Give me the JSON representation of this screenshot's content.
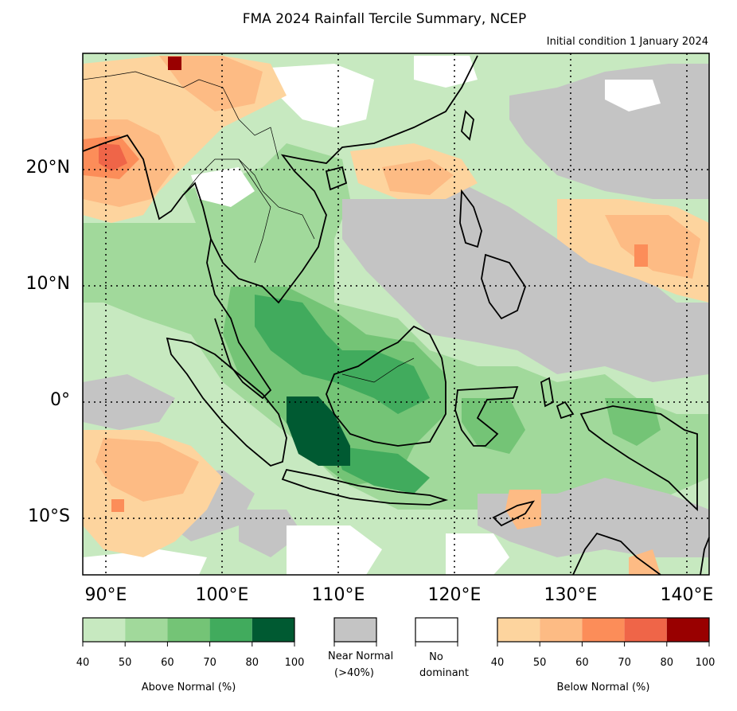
{
  "title": "FMA 2024 Rainfall Tercile Summary, NCEP",
  "subtitle": "Initial condition 1 January 2024",
  "lat_labels": [
    "20°N",
    "10°N",
    "0°",
    "10°S"
  ],
  "lon_labels": [
    "90°E",
    "100°E",
    "110°E",
    "120°E",
    "130°E",
    "140°E"
  ],
  "legend": {
    "above": {
      "caption": "Above Normal (%)",
      "ticks": [
        "40",
        "50",
        "60",
        "70",
        "80",
        "100"
      ],
      "colors": [
        "#c7e9c0",
        "#a1d99b",
        "#74c476",
        "#41ab5d",
        "#005a32"
      ]
    },
    "near": {
      "caption_line1": "Near Normal",
      "caption_line2": "(>40%)",
      "color": "#c4c4c4"
    },
    "none": {
      "caption_line1": "No",
      "caption_line2": "dominant",
      "color": "#ffffff"
    },
    "below": {
      "caption": "Below Normal (%)",
      "ticks": [
        "40",
        "50",
        "60",
        "70",
        "80",
        "100"
      ],
      "colors": [
        "#fdd49e",
        "#fdbb84",
        "#fc8d59",
        "#ef6548",
        "#990000"
      ]
    }
  },
  "extent": {
    "lon": [
      88,
      142
    ],
    "lat": [
      -15,
      30
    ]
  },
  "gridlines": {
    "lon": [
      90,
      100,
      110,
      120,
      130,
      140
    ],
    "lat": [
      20,
      10,
      0,
      -10
    ]
  }
}
